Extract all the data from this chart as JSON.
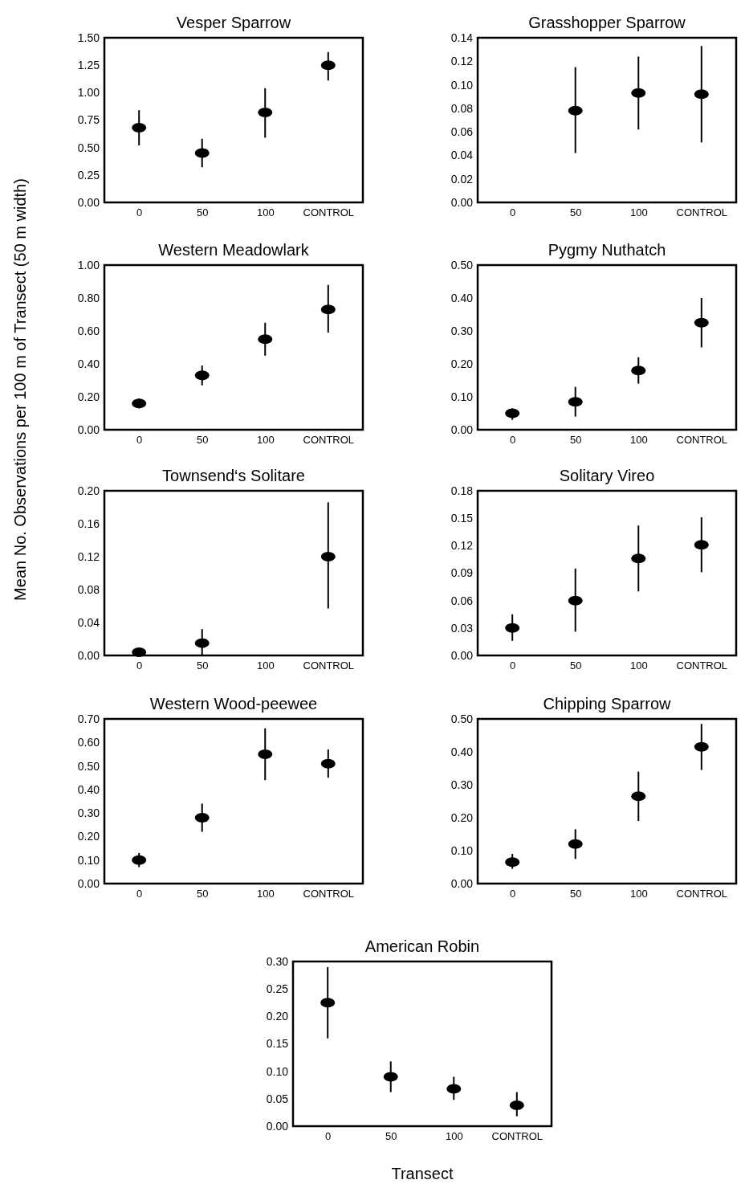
{
  "chart_data": [
    {
      "type": "scatter",
      "title": "Vesper Sparrow",
      "ylabel": "Mean No. Observations per 100 m of Transect (50 m width)",
      "categories": [
        "0",
        "50",
        "100",
        "CONTROL"
      ],
      "marker": "circle",
      "color": "#000000",
      "values": [
        0.68,
        0.45,
        0.82,
        1.25
      ],
      "errors": [
        [
          0.52,
          0.84
        ],
        [
          0.32,
          0.58
        ],
        [
          0.59,
          1.04
        ],
        [
          1.11,
          1.37
        ]
      ],
      "ylim": [
        0,
        1.5
      ],
      "yticks": [
        {
          "value": 0,
          "label": "0.00"
        },
        {
          "value": 0.25,
          "label": "0.25"
        },
        {
          "value": 0.5,
          "label": "0.50"
        },
        {
          "value": 0.75,
          "label": "0.75"
        },
        {
          "value": 1,
          "label": "1.00"
        },
        {
          "value": 1.25,
          "label": "1.25"
        },
        {
          "value": 1.5,
          "label": "1.50"
        }
      ]
    },
    {
      "type": "scatter",
      "title": "Grasshopper Sparrow",
      "categories": [
        "0",
        "50",
        "100",
        "CONTROL"
      ],
      "marker": "circle",
      "color": "#000000",
      "values": [
        null,
        0.078,
        0.093,
        0.092
      ],
      "errors": [
        null,
        [
          0.042,
          0.115
        ],
        [
          0.062,
          0.124
        ],
        [
          0.051,
          0.133
        ]
      ],
      "ylim": [
        0,
        0.14
      ],
      "yticks": [
        {
          "value": 0,
          "label": "0.00"
        },
        {
          "value": 0.02,
          "label": "0.02"
        },
        {
          "value": 0.04,
          "label": "0.04"
        },
        {
          "value": 0.06,
          "label": "0.06"
        },
        {
          "value": 0.08,
          "label": "0.08"
        },
        {
          "value": 0.1,
          "label": "0.10"
        },
        {
          "value": 0.12,
          "label": "0.12"
        },
        {
          "value": 0.14,
          "label": "0.14"
        }
      ]
    },
    {
      "type": "scatter",
      "title": "Western Meadowlark",
      "categories": [
        "0",
        "50",
        "100",
        "CONTROL"
      ],
      "marker": "circle",
      "color": "#000000",
      "values": [
        0.16,
        0.33,
        0.55,
        0.73
      ],
      "errors": [
        [
          0.13,
          0.19
        ],
        [
          0.27,
          0.39
        ],
        [
          0.45,
          0.65
        ],
        [
          0.59,
          0.88
        ]
      ],
      "ylim": [
        0,
        1
      ],
      "yticks": [
        {
          "value": 0,
          "label": "0.00"
        },
        {
          "value": 0.2,
          "label": "0.20"
        },
        {
          "value": 0.4,
          "label": "0.40"
        },
        {
          "value": 0.6,
          "label": "0.60"
        },
        {
          "value": 0.8,
          "label": "0.80"
        },
        {
          "value": 1,
          "label": "1.00"
        }
      ]
    },
    {
      "type": "scatter",
      "title": "Pygmy Nuthatch",
      "categories": [
        "0",
        "50",
        "100",
        "CONTROL"
      ],
      "marker": "circle",
      "color": "#000000",
      "values": [
        0.05,
        0.085,
        0.18,
        0.325
      ],
      "errors": [
        [
          0.03,
          0.065
        ],
        [
          0.04,
          0.13
        ],
        [
          0.14,
          0.22
        ],
        [
          0.25,
          0.4
        ]
      ],
      "ylim": [
        0,
        0.5
      ],
      "yticks": [
        {
          "value": 0,
          "label": "0.00"
        },
        {
          "value": 0.1,
          "label": "0.10"
        },
        {
          "value": 0.2,
          "label": "0.20"
        },
        {
          "value": 0.3,
          "label": "0.30"
        },
        {
          "value": 0.4,
          "label": "0.40"
        },
        {
          "value": 0.5,
          "label": "0.50"
        }
      ]
    },
    {
      "type": "scatter",
      "title": "Townsend‘s Solitare",
      "categories": [
        "0",
        "50",
        "100",
        "CONTROL"
      ],
      "marker": "circle",
      "color": "#000000",
      "values": [
        0.004,
        0.015,
        null,
        0.12
      ],
      "errors": [
        null,
        [
          0,
          0.032
        ],
        null,
        [
          0.057,
          0.186
        ]
      ],
      "ylim": [
        0,
        0.2
      ],
      "yticks": [
        {
          "value": 0,
          "label": "0.00"
        },
        {
          "value": 0.04,
          "label": "0.04"
        },
        {
          "value": 0.08,
          "label": "0.08"
        },
        {
          "value": 0.12,
          "label": "0.12"
        },
        {
          "value": 0.16,
          "label": "0.16"
        },
        {
          "value": 0.2,
          "label": "0.20"
        }
      ]
    },
    {
      "type": "scatter",
      "title": "Solitary Vireo",
      "categories": [
        "0",
        "50",
        "100",
        "CONTROL"
      ],
      "marker": "circle",
      "color": "#000000",
      "values": [
        0.03,
        0.06,
        0.106,
        0.121
      ],
      "errors": [
        [
          0.016,
          0.045
        ],
        [
          0.026,
          0.095
        ],
        [
          0.07,
          0.142
        ],
        [
          0.091,
          0.151
        ]
      ],
      "ylim": [
        0,
        0.18
      ],
      "yticks": [
        {
          "value": 0,
          "label": "0.00"
        },
        {
          "value": 0.03,
          "label": "0.03"
        },
        {
          "value": 0.06,
          "label": "0.06"
        },
        {
          "value": 0.09,
          "label": "0.09"
        },
        {
          "value": 0.12,
          "label": "0.12"
        },
        {
          "value": 0.15,
          "label": "0.15"
        },
        {
          "value": 0.18,
          "label": "0.18"
        }
      ]
    },
    {
      "type": "scatter",
      "title": "Western Wood-peewee",
      "categories": [
        "0",
        "50",
        "100",
        "CONTROL"
      ],
      "marker": "circle",
      "color": "#000000",
      "values": [
        0.1,
        0.28,
        0.55,
        0.51
      ],
      "errors": [
        [
          0.07,
          0.13
        ],
        [
          0.22,
          0.34
        ],
        [
          0.44,
          0.66
        ],
        [
          0.45,
          0.57
        ]
      ],
      "ylim": [
        0,
        0.7
      ],
      "yticks": [
        {
          "value": 0,
          "label": "0.00"
        },
        {
          "value": 0.1,
          "label": "0.10"
        },
        {
          "value": 0.2,
          "label": "0.20"
        },
        {
          "value": 0.3,
          "label": "0.30"
        },
        {
          "value": 0.4,
          "label": "0.40"
        },
        {
          "value": 0.5,
          "label": "0.50"
        },
        {
          "value": 0.6,
          "label": "0.60"
        },
        {
          "value": 0.7,
          "label": "0.70"
        }
      ]
    },
    {
      "type": "scatter",
      "title": "Chipping Sparrow",
      "categories": [
        "0",
        "50",
        "100",
        "CONTROL"
      ],
      "marker": "circle",
      "color": "#000000",
      "values": [
        0.065,
        0.12,
        0.265,
        0.415
      ],
      "errors": [
        [
          0.045,
          0.09
        ],
        [
          0.075,
          0.165
        ],
        [
          0.19,
          0.34
        ],
        [
          0.345,
          0.485
        ]
      ],
      "ylim": [
        0,
        0.5
      ],
      "yticks": [
        {
          "value": 0,
          "label": "0.00"
        },
        {
          "value": 0.1,
          "label": "0.10"
        },
        {
          "value": 0.2,
          "label": "0.20"
        },
        {
          "value": 0.3,
          "label": "0.30"
        },
        {
          "value": 0.4,
          "label": "0.40"
        },
        {
          "value": 0.5,
          "label": "0.50"
        }
      ]
    },
    {
      "type": "scatter",
      "title": "American Robin",
      "xlabel": "Transect",
      "categories": [
        "0",
        "50",
        "100",
        "CONTROL"
      ],
      "marker": "circle",
      "color": "#000000",
      "values": [
        0.225,
        0.09,
        0.068,
        0.038
      ],
      "errors": [
        [
          0.16,
          0.29
        ],
        [
          0.062,
          0.118
        ],
        [
          0.048,
          0.09
        ],
        [
          0.018,
          0.062
        ]
      ],
      "ylim": [
        0,
        0.3
      ],
      "yticks": [
        {
          "value": 0,
          "label": "0.00"
        },
        {
          "value": 0.05,
          "label": "0.05"
        },
        {
          "value": 0.1,
          "label": "0.10"
        },
        {
          "value": 0.15,
          "label": "0.15"
        },
        {
          "value": 0.2,
          "label": "0.20"
        },
        {
          "value": 0.25,
          "label": "0.25"
        },
        {
          "value": 0.3,
          "label": "0.30"
        }
      ]
    }
  ]
}
